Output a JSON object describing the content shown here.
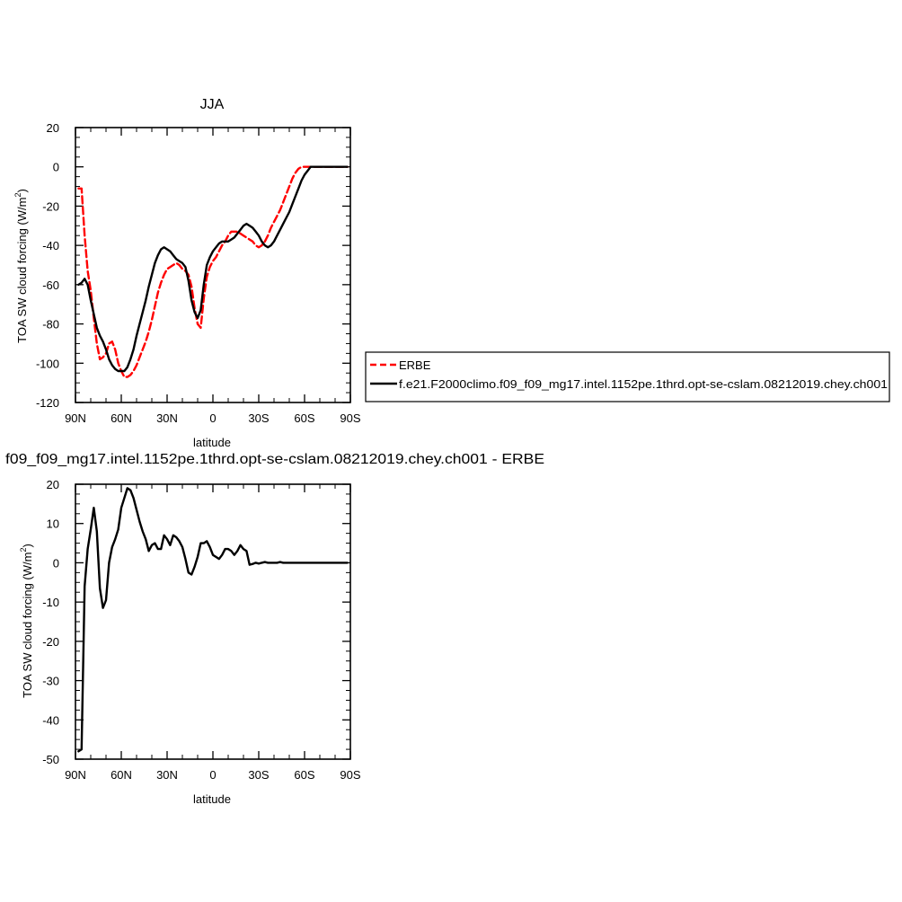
{
  "chart_data": [
    {
      "type": "line",
      "title": "JJA",
      "xlabel": "latitude",
      "ylabel": "TOA SW cloud forcing (W/m",
      "ylabel_sup": "2",
      "ylabel_close": ")",
      "xlim": [
        90,
        -90
      ],
      "ylim": [
        -120,
        20
      ],
      "xticks": [
        90,
        60,
        30,
        0,
        -30,
        -60,
        -90
      ],
      "xticklabels": [
        "90N",
        "60N",
        "30N",
        "0",
        "30S",
        "60S",
        "90S"
      ],
      "yticks": [
        -120,
        -100,
        -80,
        -60,
        -40,
        -20,
        0,
        20
      ],
      "yticklabels": [
        "-120",
        "-100",
        "-80",
        "-60",
        "-40",
        "-20",
        "0",
        "20"
      ],
      "legend_position": "right",
      "series": [
        {
          "name": "ERBE",
          "style": "dashed",
          "color": "#ff0000",
          "x": [
            88,
            86,
            84,
            82,
            80,
            78,
            76,
            74,
            72,
            70,
            68,
            66,
            64,
            62,
            60,
            58,
            56,
            54,
            52,
            50,
            48,
            46,
            44,
            42,
            40,
            38,
            36,
            34,
            32,
            30,
            28,
            26,
            24,
            22,
            20,
            18,
            16,
            14,
            12,
            10,
            8,
            6,
            4,
            2,
            0,
            -2,
            -4,
            -6,
            -8,
            -10,
            -12,
            -14,
            -16,
            -18,
            -20,
            -22,
            -24,
            -26,
            -28,
            -30,
            -32,
            -34,
            -36,
            -38,
            -40,
            -42,
            -44,
            -46,
            -48,
            -50,
            -52,
            -54,
            -56,
            -58,
            -60,
            -62,
            -64,
            -66,
            -68,
            -70,
            -72,
            -74,
            -76,
            -78,
            -80,
            -82,
            -84,
            -86,
            -88
          ],
          "values": [
            -11,
            -11,
            -35,
            -53,
            -63,
            -77,
            -90,
            -98,
            -97,
            -95,
            -90,
            -89,
            -93,
            -100,
            -104,
            -107,
            -107,
            -106,
            -104,
            -101,
            -97,
            -93,
            -89,
            -84,
            -78,
            -71,
            -64,
            -59,
            -55,
            -52,
            -51,
            -50,
            -49,
            -50,
            -52,
            -53,
            -55,
            -61,
            -72,
            -80,
            -82,
            -67,
            -56,
            -51,
            -48,
            -46,
            -43,
            -40,
            -38,
            -35,
            -33,
            -33,
            -33,
            -34,
            -35,
            -36,
            -37,
            -38,
            -40,
            -41,
            -40,
            -38,
            -35,
            -31,
            -28,
            -25,
            -22,
            -18,
            -14,
            -10,
            -6,
            -3,
            -1,
            0,
            0,
            0,
            0,
            0,
            0,
            0,
            0,
            0,
            0,
            0,
            0,
            0,
            0,
            0,
            0
          ]
        },
        {
          "name": "f.e21.F2000climo.f09_f09_mg17.intel.1152pe.1thrd.opt-se-cslam.08212019.chey.ch001",
          "style": "solid",
          "color": "#000000",
          "x": [
            88,
            86,
            84,
            82,
            80,
            78,
            76,
            74,
            72,
            70,
            68,
            66,
            64,
            62,
            60,
            58,
            56,
            54,
            52,
            50,
            48,
            46,
            44,
            42,
            40,
            38,
            36,
            34,
            32,
            30,
            28,
            26,
            24,
            22,
            20,
            18,
            16,
            14,
            12,
            10,
            8,
            6,
            4,
            2,
            0,
            -2,
            -4,
            -6,
            -8,
            -10,
            -12,
            -14,
            -16,
            -18,
            -20,
            -22,
            -24,
            -26,
            -28,
            -30,
            -32,
            -34,
            -36,
            -38,
            -40,
            -42,
            -44,
            -46,
            -48,
            -50,
            -52,
            -54,
            -56,
            -58,
            -60,
            -62,
            -64,
            -66,
            -68,
            -70,
            -72,
            -74,
            -76,
            -78,
            -80,
            -82,
            -84,
            -86,
            -88
          ],
          "values": [
            -60,
            -59,
            -57,
            -60,
            -68,
            -75,
            -82,
            -86,
            -89,
            -93,
            -98,
            -101,
            -103,
            -104,
            -104,
            -104,
            -102,
            -98,
            -93,
            -86,
            -80,
            -74,
            -68,
            -61,
            -55,
            -49,
            -45,
            -42,
            -41,
            -42,
            -43,
            -45,
            -47,
            -48,
            -49,
            -51,
            -58,
            -68,
            -74,
            -77,
            -73,
            -60,
            -50,
            -46,
            -43,
            -41,
            -39,
            -38,
            -38,
            -38,
            -37,
            -36,
            -34,
            -32,
            -30,
            -29,
            -30,
            -31,
            -33,
            -35,
            -38,
            -40,
            -41,
            -40,
            -38,
            -35,
            -32,
            -29,
            -26,
            -23,
            -19,
            -15,
            -11,
            -7,
            -4,
            -2,
            0,
            0,
            0,
            0,
            0,
            0,
            0,
            0,
            0,
            0,
            0,
            0,
            0
          ]
        }
      ]
    },
    {
      "type": "line",
      "title": "f09_f09_mg17.intel.1152pe.1thrd.opt-se-cslam.08212019.chey.ch001 - ERBE",
      "xlabel": "latitude",
      "ylabel": "TOA SW cloud forcing (W/m",
      "ylabel_sup": "2",
      "ylabel_close": ")",
      "xlim": [
        90,
        -90
      ],
      "ylim": [
        -50,
        20
      ],
      "xticks": [
        90,
        60,
        30,
        0,
        -30,
        -60,
        -90
      ],
      "xticklabels": [
        "90N",
        "60N",
        "30N",
        "0",
        "30S",
        "60S",
        "90S"
      ],
      "yticks": [
        -50,
        -40,
        -30,
        -20,
        -10,
        0,
        10,
        20
      ],
      "yticklabels": [
        "-50",
        "-40",
        "-30",
        "-20",
        "-10",
        "0",
        "10",
        "20"
      ],
      "series": [
        {
          "style": "solid",
          "color": "#000000",
          "x": [
            88,
            86,
            84,
            82,
            80,
            78,
            76,
            74,
            72,
            70,
            68,
            66,
            64,
            62,
            60,
            58,
            56,
            54,
            52,
            50,
            48,
            46,
            44,
            42,
            40,
            38,
            36,
            34,
            32,
            30,
            28,
            26,
            24,
            22,
            20,
            18,
            16,
            14,
            12,
            10,
            8,
            6,
            4,
            2,
            0,
            -2,
            -4,
            -6,
            -8,
            -10,
            -12,
            -14,
            -16,
            -18,
            -20,
            -22,
            -24,
            -26,
            -28,
            -30,
            -32,
            -34,
            -36,
            -38,
            -40,
            -42,
            -44,
            -46,
            -48,
            -50,
            -52,
            -54,
            -56,
            -58,
            -60,
            -62,
            -64,
            -66,
            -68,
            -70,
            -72,
            -74,
            -76,
            -78,
            -80,
            -82,
            -84,
            -86,
            -88
          ],
          "values": [
            -48,
            -47.5,
            -6,
            3.5,
            8.5,
            14,
            8,
            -6.5,
            -11.5,
            -9.5,
            0,
            4,
            6,
            8.5,
            14,
            16.5,
            19,
            18.5,
            16.5,
            13.5,
            10.5,
            8,
            6,
            3,
            4.5,
            5,
            3.5,
            3.5,
            7,
            6,
            4.5,
            7,
            6.5,
            5.5,
            4,
            1,
            -2.5,
            -3,
            -1,
            1.5,
            5,
            5,
            5.5,
            4,
            2,
            1.5,
            1,
            2,
            3.5,
            3.5,
            3,
            2,
            3,
            4.5,
            3.5,
            3,
            -0.5,
            -0.3,
            0,
            -0.2,
            0,
            0.2,
            0,
            0,
            0,
            0,
            0.2,
            0,
            0,
            0,
            0,
            0,
            0,
            0,
            0,
            0,
            0,
            0,
            0,
            0,
            0,
            0,
            0,
            0,
            0,
            0,
            0,
            0,
            0
          ]
        }
      ]
    }
  ]
}
